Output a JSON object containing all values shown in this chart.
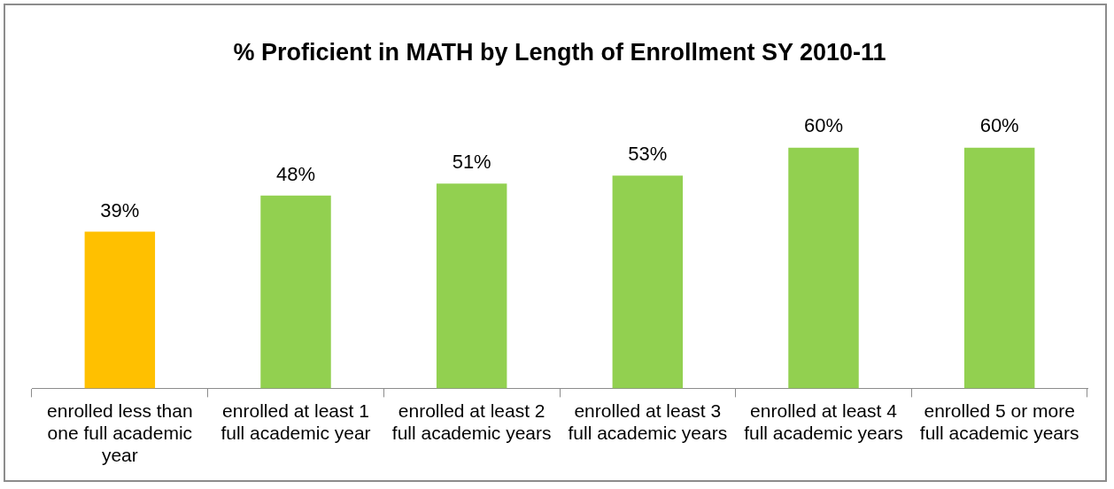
{
  "chart_data": {
    "type": "bar",
    "title": "% Proficient in MATH by Length of Enrollment SY 2010-11",
    "categories": [
      "enrolled less than one full academic year",
      "enrolled at least 1 full academic year",
      "enrolled at least 2 full academic years",
      "enrolled at least 3 full academic years",
      "enrolled at least 4 full academic years",
      "enrolled 5 or more full academic years"
    ],
    "values": [
      39,
      48,
      51,
      53,
      60,
      60
    ],
    "colors": [
      "#ffc000",
      "#92d050",
      "#92d050",
      "#92d050",
      "#92d050",
      "#92d050"
    ],
    "value_labels": [
      "39%",
      "48%",
      "51%",
      "53%",
      "60%",
      "60%"
    ],
    "legend": false
  }
}
